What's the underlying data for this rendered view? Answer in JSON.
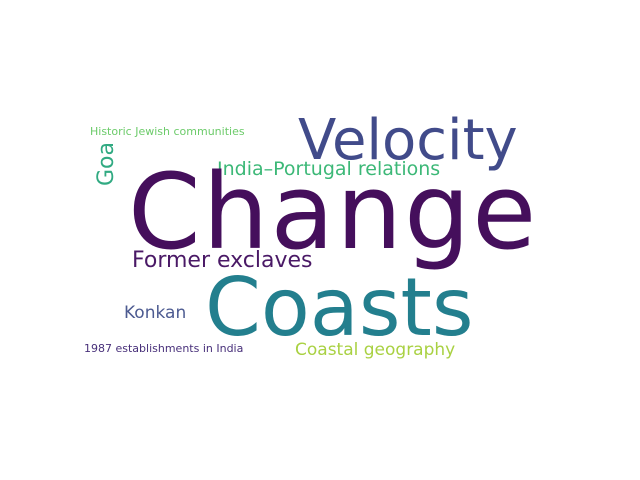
{
  "wordcloud": {
    "background": "#ffffff",
    "words": {
      "change": {
        "text": "Change",
        "color": "#450f5c"
      },
      "coasts": {
        "text": "Coasts",
        "color": "#237f8e"
      },
      "velocity": {
        "text": "Velocity",
        "color": "#414b8a"
      },
      "india_portugal": {
        "text": "India–Portugal relations",
        "color": "#3cb877"
      },
      "former_exclaves": {
        "text": "Former exclaves",
        "color": "#4a1966"
      },
      "konkan": {
        "text": "Konkan",
        "color": "#4d5b91"
      },
      "coastal_geography": {
        "text": "Coastal geography",
        "color": "#a9d142"
      },
      "jewish": {
        "text": "Historic Jewish communities",
        "color": "#6ccb6a"
      },
      "est1987": {
        "text": "1987 establishments in India",
        "color": "#48307a"
      },
      "goa": {
        "text": "Goa",
        "color": "#31aa82"
      }
    }
  }
}
